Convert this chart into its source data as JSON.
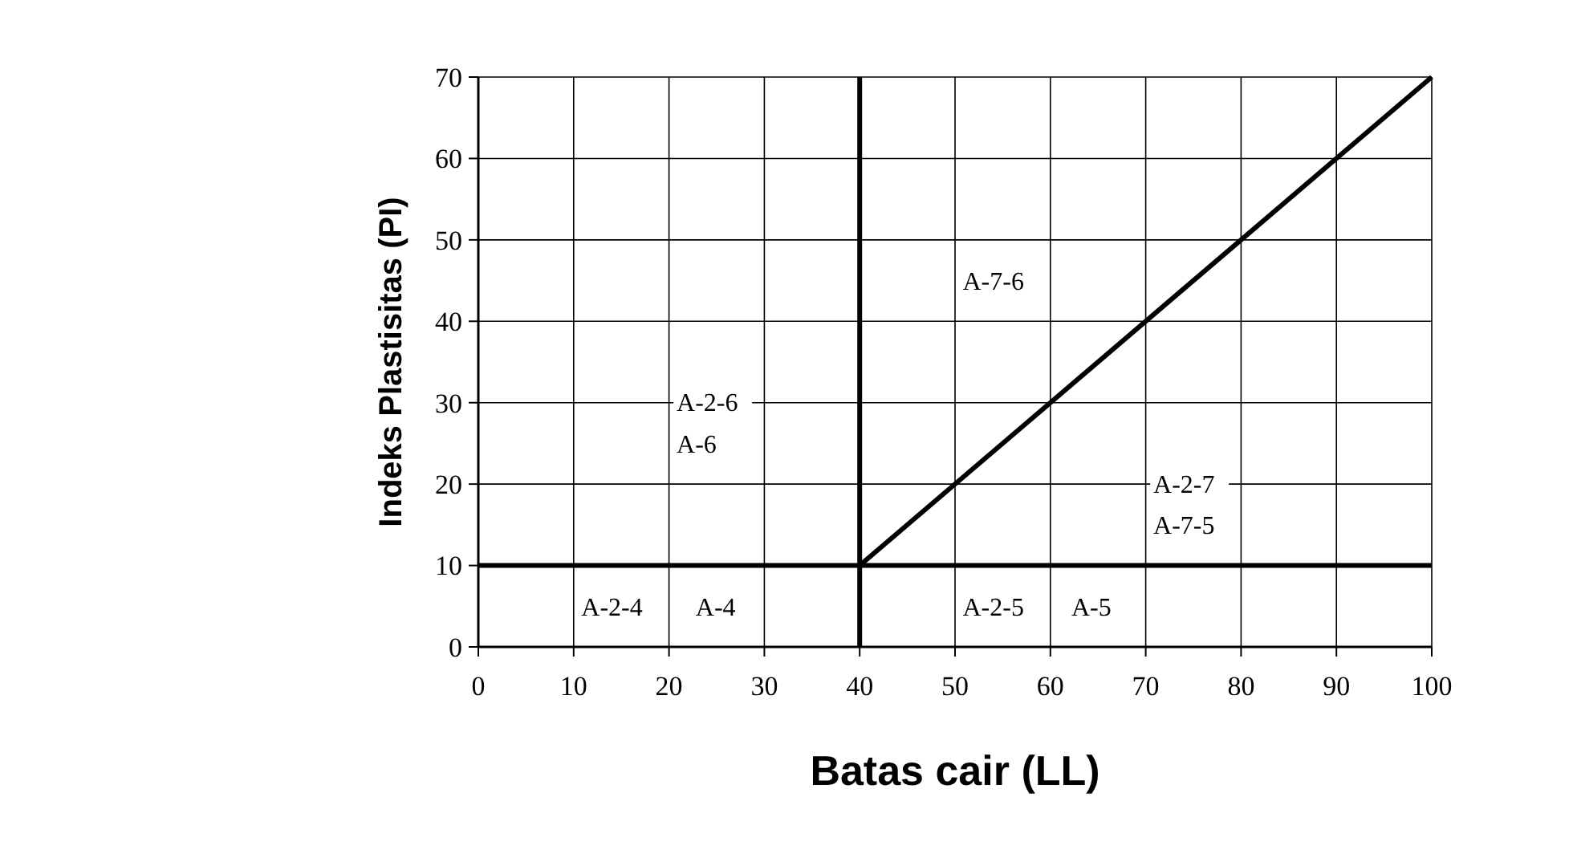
{
  "chart_data": {
    "type": "line",
    "xlabel": "Batas cair (LL)",
    "ylabel": "Indeks Plastisitas (PI)",
    "xlim": [
      0,
      100
    ],
    "ylim": [
      0,
      70
    ],
    "xticks": [
      0,
      10,
      20,
      30,
      40,
      50,
      60,
      70,
      80,
      90,
      100
    ],
    "yticks": [
      0,
      10,
      20,
      30,
      40,
      50,
      60,
      70
    ],
    "grid": true,
    "marker": "none",
    "line_style": "solid",
    "series": [
      {
        "color": "#000000",
        "x": [
          40,
          100
        ],
        "values": [
          10,
          70
        ]
      },
      {
        "color": "#000000",
        "x": [
          40,
          40
        ],
        "values": [
          0,
          70
        ]
      },
      {
        "color": "#000000",
        "x": [
          0,
          100
        ],
        "values": [
          10,
          10
        ]
      }
    ],
    "annotations": [
      "A-2-6",
      "A-6",
      "A-7-6",
      "A-2-7",
      "A-7-5",
      "A-2-4",
      "A-4",
      "A-2-5",
      "A-5"
    ]
  }
}
